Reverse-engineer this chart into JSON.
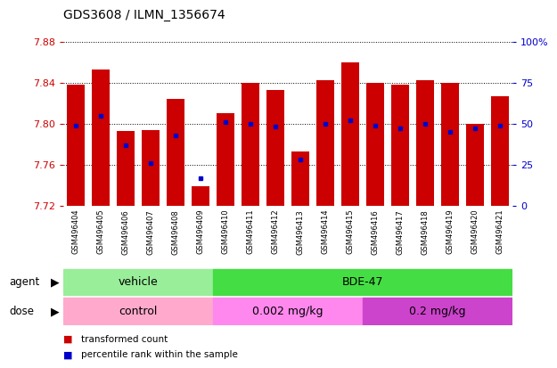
{
  "title": "GDS3608 / ILMN_1356674",
  "samples": [
    "GSM496404",
    "GSM496405",
    "GSM496406",
    "GSM496407",
    "GSM496408",
    "GSM496409",
    "GSM496410",
    "GSM496411",
    "GSM496412",
    "GSM496413",
    "GSM496414",
    "GSM496415",
    "GSM496416",
    "GSM496417",
    "GSM496418",
    "GSM496419",
    "GSM496420",
    "GSM496421"
  ],
  "transformed_count": [
    7.838,
    7.853,
    7.793,
    7.794,
    7.824,
    7.739,
    7.81,
    7.84,
    7.833,
    7.773,
    7.842,
    7.86,
    7.84,
    7.838,
    7.842,
    7.84,
    7.8,
    7.827
  ],
  "percentile_rank": [
    49,
    55,
    37,
    26,
    43,
    17,
    51,
    50,
    48,
    28,
    50,
    52,
    49,
    47,
    50,
    45,
    47,
    49
  ],
  "ymin": 7.72,
  "ymax": 7.88,
  "yticks": [
    7.72,
    7.76,
    7.8,
    7.84,
    7.88
  ],
  "right_yticks": [
    0,
    25,
    50,
    75,
    100
  ],
  "bar_color": "#cc0000",
  "blue_color": "#0000cc",
  "agent_groups": [
    {
      "label": "vehicle",
      "start": 0,
      "end": 6,
      "color": "#99ee99"
    },
    {
      "label": "BDE-47",
      "start": 6,
      "end": 18,
      "color": "#44dd44"
    }
  ],
  "dose_groups": [
    {
      "label": "control",
      "start": 0,
      "end": 6,
      "color": "#ffaacc"
    },
    {
      "label": "0.002 mg/kg",
      "start": 6,
      "end": 12,
      "color": "#ff88ee"
    },
    {
      "label": "0.2 mg/kg",
      "start": 12,
      "end": 18,
      "color": "#cc44cc"
    }
  ],
  "legend_items": [
    {
      "label": "transformed count",
      "color": "#cc0000"
    },
    {
      "label": "percentile rank within the sample",
      "color": "#0000cc"
    }
  ],
  "xtick_bg": "#d3d3d3",
  "plot_bg": "#ffffff",
  "fig_bg": "#ffffff"
}
